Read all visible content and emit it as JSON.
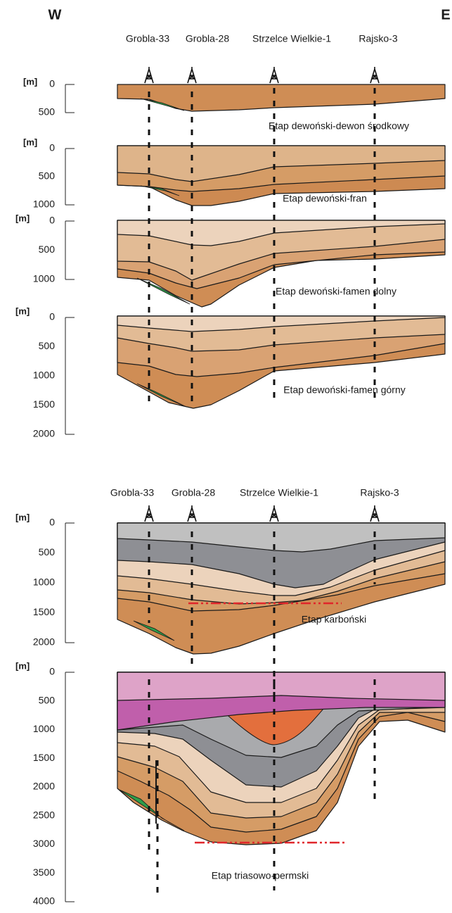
{
  "compass": {
    "west": "W",
    "east": "E"
  },
  "sections": [
    {
      "wells": [
        "Grobla-33",
        "Grobla-28",
        "Strzelce Wielkie-1",
        "Rajsko-3"
      ],
      "panels": [
        {
          "unit": "[m]",
          "depth_ticks": [
            0,
            500
          ],
          "stage": "Etap dewoński-dewon środkowy"
        },
        {
          "unit": "[m]",
          "depth_ticks": [
            0,
            500,
            1000
          ],
          "stage": "Etap dewoński-fran"
        },
        {
          "unit": "[m]",
          "depth_ticks": [
            0,
            500,
            1000
          ],
          "stage": "Etap dewoński-famen dolny"
        },
        {
          "unit": "[m]",
          "depth_ticks": [
            0,
            500,
            1000,
            1500,
            2000
          ],
          "stage": "Etap dewoński-famen górny"
        }
      ]
    },
    {
      "wells": [
        "Grobla-33",
        "Grobla-28",
        "Strzelce Wielkie-1",
        "Rajsko-3"
      ],
      "panels": [
        {
          "unit": "[m]",
          "depth_ticks": [
            0,
            500,
            1000,
            1500,
            2000
          ],
          "stage": "Etap karboński"
        },
        {
          "unit": "[m]",
          "depth_ticks": [
            0,
            500,
            1000,
            1500,
            2000,
            2500,
            3000,
            3500,
            4000
          ],
          "stage": "Etap triasowo-permski"
        }
      ]
    }
  ]
}
